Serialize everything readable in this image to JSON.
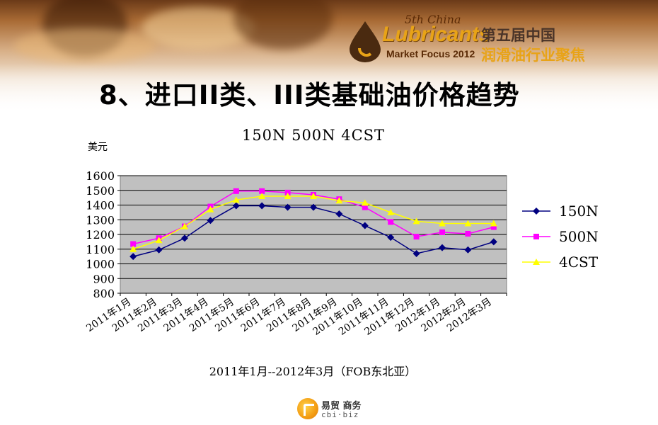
{
  "header": {
    "logo_edition": "5th China",
    "logo_name": "Lubricants",
    "logo_sub": "Market Focus 2012",
    "logo_cn_line1": "第五届中国",
    "logo_cn_line2": "润滑油行业聚焦"
  },
  "slide_title": "8、进口II类、III类基础油价格趋势",
  "footer": {
    "brand_cn": "易贸 商务",
    "brand_en": "cbi·biz"
  },
  "colors": {
    "150N": "#000080",
    "500N": "#ff00ff",
    "4CST": "#ffff00",
    "plot_bg": "#c0c0c0"
  },
  "chart_data": {
    "type": "line",
    "title": "150N 500N 4CST",
    "ylabel": "美元",
    "xlabel": "2011年1月--2012年3月（FOB东北亚）",
    "ylim": [
      800,
      1600
    ],
    "yticks": [
      "1600",
      "1500",
      "1400",
      "1300",
      "1200",
      "1100",
      "1000",
      "900",
      "800"
    ],
    "grid": true,
    "legend": "right",
    "categories": [
      "2011年1月",
      "2011年2月",
      "2011年3月",
      "2011年4月",
      "2011年5月",
      "2011年6月",
      "2011年7月",
      "2011年8月",
      "2011年9月",
      "2011年10月",
      "2011年11月",
      "2011年12月",
      "2012年1月",
      "2012年2月",
      "2012年3月"
    ],
    "series": [
      {
        "name": "150N",
        "marker": "diamond",
        "values": [
          1050,
          1095,
          1175,
          1295,
          1395,
          1395,
          1385,
          1385,
          1340,
          1260,
          1180,
          1070,
          1110,
          1095,
          1150
        ]
      },
      {
        "name": "500N",
        "marker": "square",
        "values": [
          1135,
          1175,
          1255,
          1390,
          1495,
          1495,
          1485,
          1470,
          1440,
          1385,
          1285,
          1185,
          1215,
          1205,
          1250
        ]
      },
      {
        "name": "4CST",
        "marker": "triangle",
        "values": [
          1100,
          1160,
          1255,
          1370,
          1435,
          1460,
          1460,
          1460,
          1430,
          1415,
          1350,
          1290,
          1275,
          1275,
          1275
        ]
      }
    ]
  }
}
